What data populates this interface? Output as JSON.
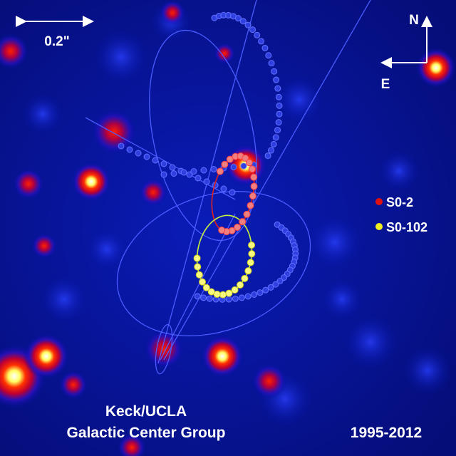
{
  "scale_bar": {
    "label": "0.2\""
  },
  "compass": {
    "north": "N",
    "east": "E"
  },
  "legend": [
    {
      "label": "S0-2"
    },
    {
      "label": "S0-102"
    }
  ],
  "credit": {
    "line1": "Keck/UCLA",
    "line2": "Galactic Center Group"
  },
  "years": "1995-2012"
}
